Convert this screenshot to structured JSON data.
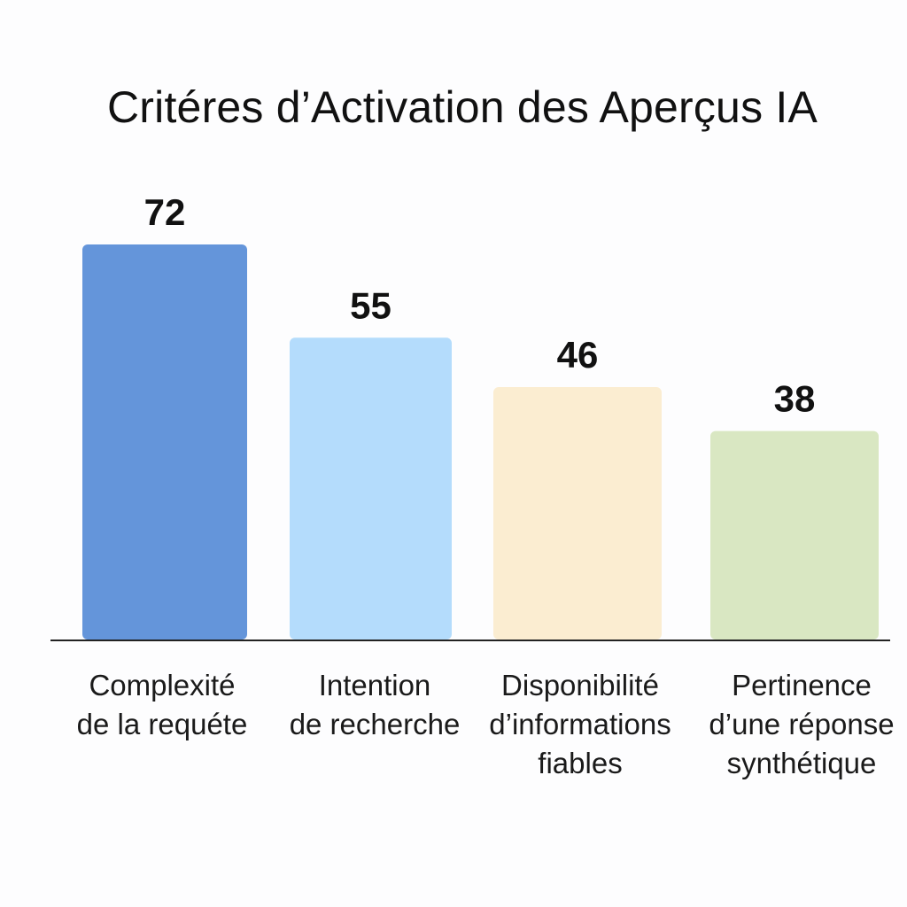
{
  "chart_data": {
    "type": "bar",
    "title": "Critéres d’Activation des Aperçus IA",
    "categories": [
      "Complexité\nde la requéte",
      "Intention\nde recherche",
      "Disponibilité\nd’informations\nfiables",
      "Pertinence\nd’une réponse\nsynthétique"
    ],
    "values": [
      72,
      55,
      46,
      38
    ],
    "colors": [
      "#6495da",
      "#b4dcfc",
      "#fbedd1",
      "#d9e7c2"
    ],
    "xlabel": "",
    "ylabel": "",
    "ylim": [
      0,
      72
    ],
    "grid": false,
    "legend": "none"
  }
}
